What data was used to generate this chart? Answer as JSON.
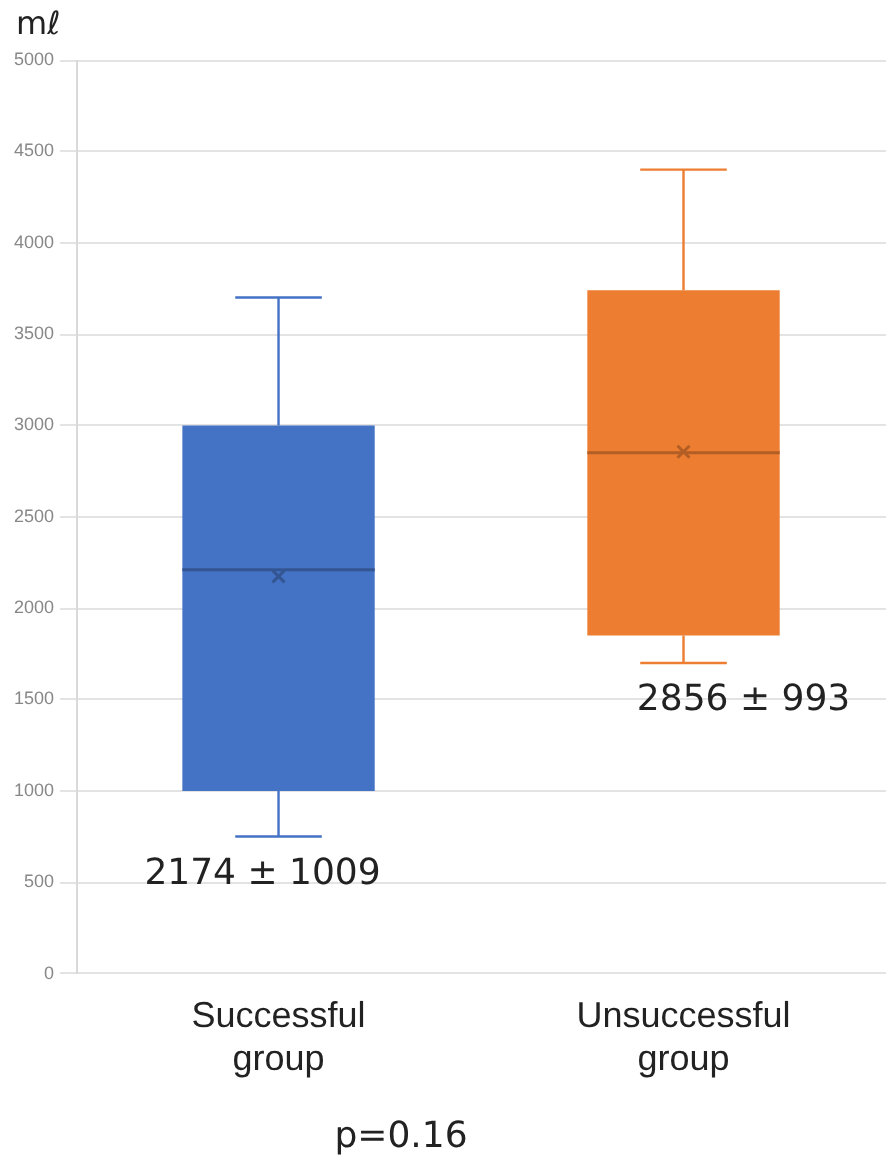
{
  "chart_data": {
    "type": "box",
    "ylabel": "mℓ",
    "categories": [
      "Successful group",
      "Unsuccessful group"
    ],
    "boxes": [
      {
        "low": 750,
        "q1": 1000,
        "median": 2210,
        "q3": 3000,
        "high": 3700,
        "mean": 2174
      },
      {
        "low": 1700,
        "q1": 1850,
        "median": 2850,
        "q3": 3740,
        "high": 4400,
        "mean": 2856
      }
    ],
    "colors": [
      "#4472c4",
      "#ed7d31"
    ],
    "ylim": [
      0,
      5000
    ],
    "yticks": [
      0,
      500,
      1000,
      1500,
      2000,
      2500,
      3000,
      3500,
      4000,
      4500,
      5000
    ],
    "grid": "y",
    "legend": false,
    "annotations": [
      "2174 ± 1009",
      "2856 ± 993",
      "p=0.16"
    ]
  }
}
